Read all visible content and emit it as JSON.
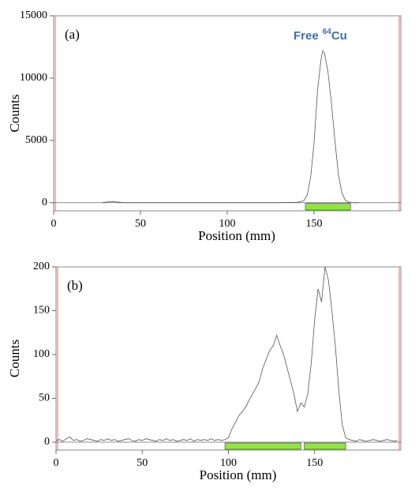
{
  "chart_data": [
    {
      "type": "line",
      "panel_label": "(a)",
      "xlabel": "Position (mm)",
      "ylabel": "Counts",
      "annotation": {
        "prefix": "Free",
        "superscript": "64",
        "element": "Cu",
        "color": "#3a70b4"
      },
      "x": [
        28,
        32,
        34,
        36,
        40,
        130,
        140,
        144,
        146,
        148,
        150,
        152,
        154,
        155,
        156,
        158,
        160,
        162,
        164,
        166,
        168,
        170,
        172,
        176
      ],
      "values": [
        0,
        80,
        100,
        60,
        0,
        0,
        30,
        150,
        600,
        2000,
        4800,
        9000,
        11500,
        12200,
        12000,
        10500,
        8000,
        5000,
        2300,
        800,
        200,
        50,
        0,
        0
      ],
      "color": "#555555",
      "regions": [
        [
          145,
          171
        ]
      ],
      "region_color": "#8ee83a",
      "xlim": [
        0,
        200
      ],
      "xticks": [
        0,
        50,
        100,
        150
      ],
      "ylim": [
        -650,
        15000
      ],
      "yticks": [
        0,
        5000,
        10000,
        15000
      ]
    },
    {
      "type": "line",
      "panel_label": "(b)",
      "xlabel": "Position (mm)",
      "ylabel": "Counts",
      "x": [
        0,
        2,
        4,
        6,
        8,
        10,
        12,
        14,
        16,
        18,
        20,
        22,
        24,
        26,
        28,
        30,
        32,
        34,
        36,
        38,
        40,
        42,
        44,
        46,
        48,
        50,
        52,
        54,
        56,
        58,
        60,
        62,
        64,
        66,
        68,
        70,
        72,
        74,
        76,
        78,
        80,
        82,
        84,
        86,
        88,
        90,
        92,
        94,
        96,
        98,
        100,
        102,
        104,
        106,
        108,
        110,
        112,
        114,
        116,
        118,
        120,
        122,
        124,
        126,
        128,
        130,
        132,
        134,
        136,
        138,
        140,
        142,
        144,
        146,
        148,
        150,
        152,
        154,
        156,
        158,
        160,
        162,
        164,
        166,
        168,
        170,
        172,
        174,
        176,
        178,
        180,
        182,
        184,
        186,
        188,
        190,
        192,
        194,
        196,
        198
      ],
      "values": [
        2,
        3,
        1,
        4,
        6,
        2,
        3,
        1,
        2,
        4,
        3,
        2,
        1,
        3,
        2,
        4,
        2,
        3,
        1,
        2,
        3,
        4,
        2,
        1,
        3,
        2,
        4,
        3,
        2,
        1,
        3,
        2,
        4,
        2,
        3,
        1,
        2,
        3,
        2,
        4,
        1,
        3,
        2,
        3,
        2,
        4,
        2,
        3,
        2,
        3,
        5,
        15,
        22,
        30,
        35,
        40,
        48,
        55,
        62,
        70,
        85,
        95,
        105,
        110,
        122,
        110,
        100,
        85,
        70,
        55,
        35,
        45,
        40,
        55,
        90,
        140,
        175,
        160,
        200,
        185,
        150,
        110,
        60,
        20,
        5,
        3,
        2,
        1,
        3,
        2,
        1,
        2,
        3,
        2,
        1,
        2,
        3,
        2,
        1,
        2
      ],
      "color": "#555555",
      "regions": [
        [
          98,
          142
        ],
        [
          144,
          168
        ]
      ],
      "region_color": "#8ee83a",
      "xlim": [
        0,
        200
      ],
      "xticks": [
        0,
        50,
        100,
        150
      ],
      "ylim": [
        -9,
        200
      ],
      "yticks": [
        0,
        50,
        100,
        150,
        200
      ]
    }
  ]
}
